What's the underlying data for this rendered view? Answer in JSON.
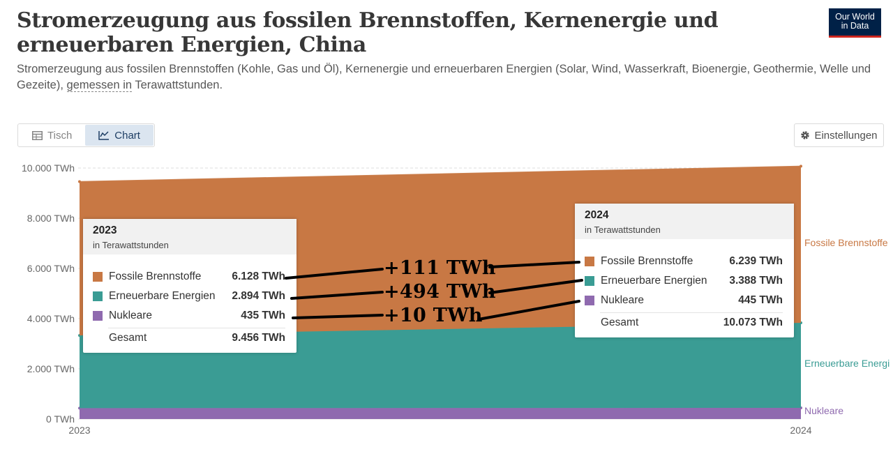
{
  "header": {
    "title": "Stromerzeugung aus fossilen Brennstoffen, Kernenergie und erneuerbaren Energien, China",
    "subtitle_part1": "Stromerzeugung aus fossilen Brennstoffen (Kohle, Gas und Öl), Kernenergie und erneuerbaren Energien (Solar, Wind, Wasserkraft, Bioenergie, Geothermie, Welle und",
    "subtitle_part2": "Gezeite), ",
    "subtitle_link": "gemessen in",
    "subtitle_part3": " Terawattstunden.",
    "logo_line1": "Our World",
    "logo_line2": "in Data"
  },
  "tabs": [
    {
      "label": "Tisch",
      "icon": "table-icon",
      "active": false
    },
    {
      "label": "Chart",
      "icon": "chart-icon",
      "active": true
    }
  ],
  "settings_label": "Einstellungen",
  "colors": {
    "fossil": "#c87844",
    "renewables": "#3a9c94",
    "nuclear": "#8f6aaf"
  },
  "chart_data": {
    "type": "area",
    "stacked": true,
    "x": [
      "2023",
      "2024"
    ],
    "y_ticks": [
      "0 TWh",
      "2.000 TWh",
      "4.000 TWh",
      "6.000 TWh",
      "8.000 TWh",
      "10.000 TWh"
    ],
    "ylim": [
      0,
      10000
    ],
    "series": [
      {
        "name": "Nukleare",
        "values": [
          435,
          445
        ]
      },
      {
        "name": "Erneuerbare Energi",
        "values": [
          2894,
          3388
        ]
      },
      {
        "name": "Fossile Brennstoffe",
        "values": [
          6128,
          6239
        ]
      }
    ]
  },
  "tooltip_2023": {
    "year": "2023",
    "unit": "in Terawattstunden",
    "rows": [
      {
        "label": "Fossile Brennstoffe",
        "value": "6.128 TWh"
      },
      {
        "label": "Erneuerbare Energien",
        "value": "2.894 TWh"
      },
      {
        "label": "Nukleare",
        "value": "435 TWh"
      }
    ],
    "total_label": "Gesamt",
    "total_value": "9.456 TWh"
  },
  "tooltip_2024": {
    "year": "2024",
    "unit": "in Terawattstunden",
    "rows": [
      {
        "label": "Fossile Brennstoffe",
        "value": "6.239 TWh"
      },
      {
        "label": "Erneuerbare Energien",
        "value": "3.388 TWh"
      },
      {
        "label": "Nukleare",
        "value": "445 TWh"
      }
    ],
    "total_label": "Gesamt",
    "total_value": "10.073 TWh"
  },
  "annotations": [
    "+111 TWh",
    "+494 TWh",
    "+10 TWh"
  ]
}
